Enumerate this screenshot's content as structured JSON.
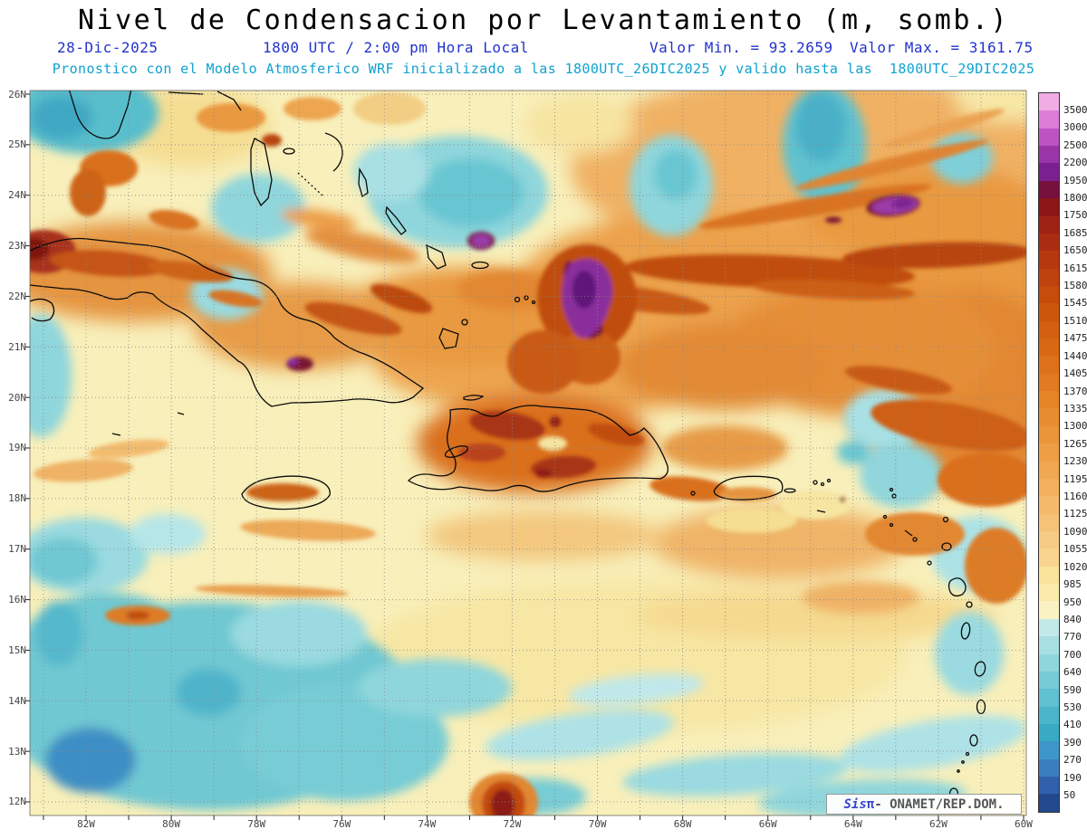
{
  "title": "Nivel de Condensacion por Levantamiento (m, somb.)",
  "header": {
    "date": "28-Dic-2025",
    "time": "1800 UTC / 2:00 pm Hora Local",
    "valor_min": "Valor Min. = 93.2659",
    "valor_max": "Valor Max. = 3161.75",
    "forecast": "Pronostico con el Modelo Atmosferico WRF inicializado a las 1800UTC_26DIC2025 y valido hasta las  1800UTC_29DIC2025"
  },
  "credit": {
    "prefix": "Sis",
    "pi": "π",
    "separator": "- ",
    "org": "ONAMET/REP.DOM."
  },
  "axes": {
    "lat_labels": [
      "26N",
      "25N",
      "24N",
      "23N",
      "22N",
      "21N",
      "20N",
      "19N",
      "18N",
      "17N",
      "16N",
      "15N",
      "14N",
      "13N",
      "12N"
    ],
    "lon_labels": [
      "82W",
      "80W",
      "78W",
      "76W",
      "74W",
      "72W",
      "70W",
      "68W",
      "66W",
      "64W",
      "62W",
      "60W"
    ]
  },
  "colorbar": {
    "labels": [
      "3500",
      "3000",
      "2500",
      "2200",
      "1950",
      "1800",
      "1750",
      "1685",
      "1650",
      "1615",
      "1580",
      "1545",
      "1510",
      "1475",
      "1440",
      "1405",
      "1370",
      "1335",
      "1300",
      "1265",
      "1230",
      "1195",
      "1160",
      "1125",
      "1090",
      "1055",
      "1020",
      "985",
      "950",
      "840",
      "770",
      "700",
      "640",
      "590",
      "530",
      "410",
      "390",
      "270",
      "190",
      "50"
    ],
    "colors": [
      "#F2ACE4",
      "#DD7DD8",
      "#BC53C2",
      "#9A35A8",
      "#7A2090",
      "#76103C",
      "#8C1717",
      "#9E2214",
      "#AB2D11",
      "#B5380F",
      "#BE420D",
      "#C64C0C",
      "#CD560D",
      "#D35F10",
      "#D86814",
      "#DD7119",
      "#E17A20",
      "#E58327",
      "#E88C30",
      "#EB953A",
      "#EE9E45",
      "#F0A751",
      "#F2B05D",
      "#F4B96A",
      "#F5C278",
      "#F6CB86",
      "#F8D48E",
      "#F9E49C",
      "#FAEBAC",
      "#FBF2C4",
      "#C2E8E8",
      "#A8DFE2",
      "#8FD5DC",
      "#77CBD6",
      "#60C1D0",
      "#4BB6CA",
      "#38AAC4",
      "#3E96C8",
      "#3A7EBE",
      "#3060AC",
      "#24488E"
    ]
  },
  "colors": {
    "header_blue": "#2233CC",
    "header_cyan": "#0FA2CE",
    "axis_label": "#444444",
    "title": "#000000"
  },
  "chart_data": {
    "type": "heatmap",
    "title": "Nivel de Condensacion por Levantamiento (m, somb.)",
    "valid_date": "28-Dic-2025",
    "valid_time": "1800 UTC / 2:00 pm Hora Local",
    "value_min": 93.2659,
    "value_max": 3161.75,
    "units": "m",
    "model": "WRF",
    "init": "1800UTC_26DIC2025",
    "valid_until": "1800UTC_29DIC2025",
    "lon_range_deg_w": [
      83.3,
      60
    ],
    "lat_range_deg_n": [
      11.7,
      26.1
    ],
    "colorbar_levels": [
      50,
      190,
      270,
      390,
      410,
      530,
      590,
      640,
      700,
      770,
      840,
      950,
      985,
      1020,
      1055,
      1090,
      1125,
      1160,
      1195,
      1230,
      1265,
      1300,
      1335,
      1370,
      1405,
      1440,
      1475,
      1510,
      1545,
      1580,
      1615,
      1650,
      1685,
      1750,
      1800,
      1950,
      2200,
      2500,
      3000,
      3500
    ]
  }
}
